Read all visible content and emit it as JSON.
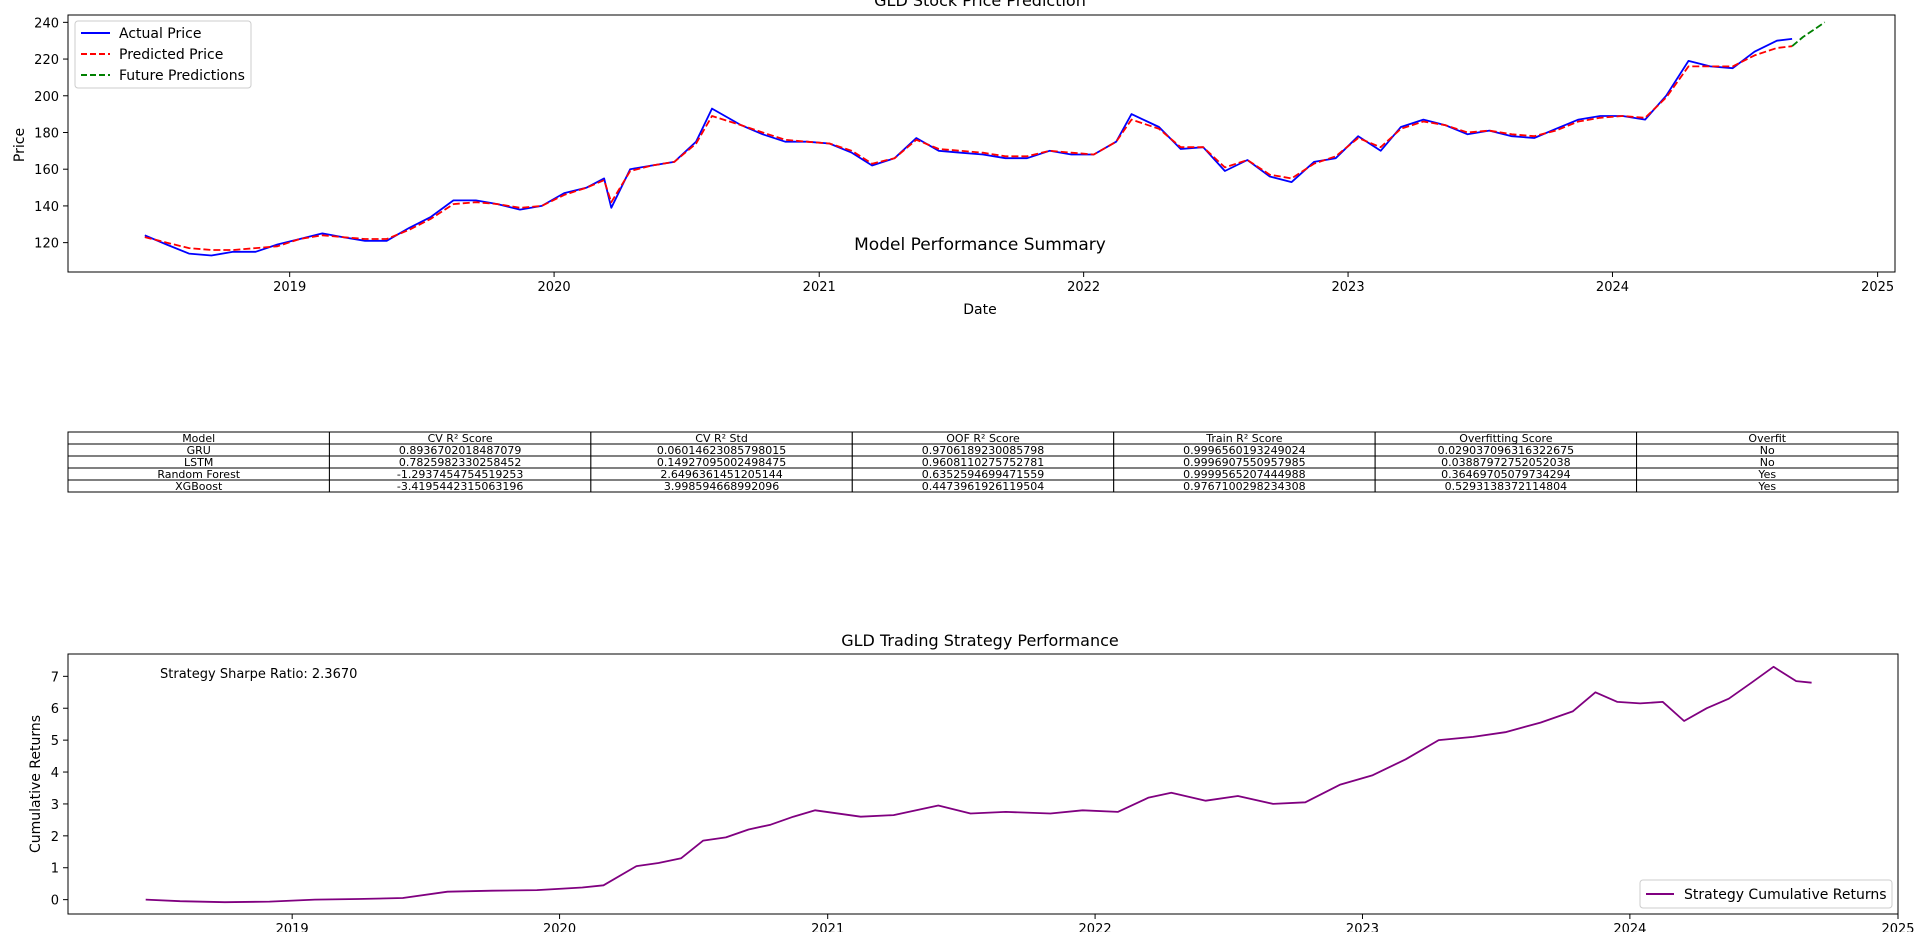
{
  "colors": {
    "actual": "#0000ff",
    "predicted": "#ff0000",
    "future": "#008000",
    "strategy": "#800080",
    "axes": "#000000"
  },
  "chart_data": [
    {
      "type": "line",
      "title": "GLD Stock Price Prediction",
      "xlabel": "Date",
      "ylabel": "Price",
      "xlim": [
        "2018-03-01",
        "2025-01-25"
      ],
      "ylim": [
        104,
        244
      ],
      "x_ticks": [
        "2019",
        "2020",
        "2021",
        "2022",
        "2023",
        "2024",
        "2025"
      ],
      "y_ticks": [
        120,
        140,
        160,
        180,
        200,
        220,
        240
      ],
      "grid": false,
      "legend_position": "upper-left",
      "annotation": "Model Performance Summary",
      "series": [
        {
          "name": "Actual Price",
          "style": "solid",
          "color_key": "actual",
          "points": [
            [
              "2018-06-15",
              124
            ],
            [
              "2018-07-15",
              119
            ],
            [
              "2018-08-15",
              114
            ],
            [
              "2018-09-15",
              113
            ],
            [
              "2018-10-15",
              115
            ],
            [
              "2018-11-15",
              115
            ],
            [
              "2018-12-15",
              119
            ],
            [
              "2019-01-15",
              122
            ],
            [
              "2019-02-15",
              125
            ],
            [
              "2019-03-15",
              123
            ],
            [
              "2019-04-15",
              121
            ],
            [
              "2019-05-15",
              121
            ],
            [
              "2019-06-15",
              128
            ],
            [
              "2019-07-15",
              134
            ],
            [
              "2019-08-15",
              143
            ],
            [
              "2019-09-15",
              143
            ],
            [
              "2019-10-15",
              141
            ],
            [
              "2019-11-15",
              138
            ],
            [
              "2019-12-15",
              140
            ],
            [
              "2020-01-15",
              147
            ],
            [
              "2020-02-15",
              150
            ],
            [
              "2020-03-10",
              155
            ],
            [
              "2020-03-20",
              139
            ],
            [
              "2020-04-15",
              160
            ],
            [
              "2020-05-15",
              162
            ],
            [
              "2020-06-15",
              164
            ],
            [
              "2020-07-15",
              175
            ],
            [
              "2020-08-06",
              193
            ],
            [
              "2020-09-15",
              184
            ],
            [
              "2020-10-15",
              179
            ],
            [
              "2020-11-15",
              175
            ],
            [
              "2020-12-15",
              175
            ],
            [
              "2021-01-15",
              174
            ],
            [
              "2021-02-15",
              169
            ],
            [
              "2021-03-15",
              162
            ],
            [
              "2021-04-15",
              166
            ],
            [
              "2021-05-15",
              177
            ],
            [
              "2021-06-15",
              170
            ],
            [
              "2021-07-15",
              169
            ],
            [
              "2021-08-15",
              168
            ],
            [
              "2021-09-15",
              166
            ],
            [
              "2021-10-15",
              166
            ],
            [
              "2021-11-15",
              170
            ],
            [
              "2021-12-15",
              168
            ],
            [
              "2022-01-15",
              168
            ],
            [
              "2022-02-15",
              175
            ],
            [
              "2022-03-08",
              190
            ],
            [
              "2022-04-15",
              183
            ],
            [
              "2022-05-15",
              171
            ],
            [
              "2022-06-15",
              172
            ],
            [
              "2022-07-15",
              159
            ],
            [
              "2022-08-15",
              165
            ],
            [
              "2022-09-15",
              156
            ],
            [
              "2022-10-15",
              153
            ],
            [
              "2022-11-15",
              164
            ],
            [
              "2022-12-15",
              166
            ],
            [
              "2023-01-15",
              178
            ],
            [
              "2023-02-15",
              170
            ],
            [
              "2023-03-15",
              183
            ],
            [
              "2023-04-15",
              187
            ],
            [
              "2023-05-15",
              184
            ],
            [
              "2023-06-15",
              179
            ],
            [
              "2023-07-15",
              181
            ],
            [
              "2023-08-15",
              178
            ],
            [
              "2023-09-15",
              177
            ],
            [
              "2023-10-15",
              182
            ],
            [
              "2023-11-15",
              187
            ],
            [
              "2023-12-15",
              189
            ],
            [
              "2024-01-15",
              189
            ],
            [
              "2024-02-15",
              187
            ],
            [
              "2024-03-15",
              200
            ],
            [
              "2024-04-15",
              219
            ],
            [
              "2024-05-15",
              216
            ],
            [
              "2024-06-15",
              215
            ],
            [
              "2024-07-15",
              224
            ],
            [
              "2024-08-15",
              230
            ],
            [
              "2024-09-05",
              231
            ]
          ]
        },
        {
          "name": "Predicted Price",
          "style": "dashed",
          "color_key": "predicted",
          "points": [
            [
              "2018-06-15",
              123
            ],
            [
              "2018-07-15",
              120
            ],
            [
              "2018-08-15",
              117
            ],
            [
              "2018-09-15",
              116
            ],
            [
              "2018-10-15",
              116
            ],
            [
              "2018-11-15",
              117
            ],
            [
              "2018-12-15",
              118
            ],
            [
              "2019-01-15",
              122
            ],
            [
              "2019-02-15",
              124
            ],
            [
              "2019-03-15",
              123
            ],
            [
              "2019-04-15",
              122
            ],
            [
              "2019-05-15",
              122
            ],
            [
              "2019-06-15",
              127
            ],
            [
              "2019-07-15",
              133
            ],
            [
              "2019-08-15",
              141
            ],
            [
              "2019-09-15",
              142
            ],
            [
              "2019-10-15",
              141
            ],
            [
              "2019-11-15",
              139
            ],
            [
              "2019-12-15",
              140
            ],
            [
              "2020-01-15",
              146
            ],
            [
              "2020-02-15",
              150
            ],
            [
              "2020-03-10",
              154
            ],
            [
              "2020-03-20",
              142
            ],
            [
              "2020-04-15",
              159
            ],
            [
              "2020-05-15",
              162
            ],
            [
              "2020-06-15",
              164
            ],
            [
              "2020-07-15",
              174
            ],
            [
              "2020-08-06",
              189
            ],
            [
              "2020-09-15",
              184
            ],
            [
              "2020-10-15",
              180
            ],
            [
              "2020-11-15",
              176
            ],
            [
              "2020-12-15",
              175
            ],
            [
              "2021-01-15",
              174
            ],
            [
              "2021-02-15",
              170
            ],
            [
              "2021-03-15",
              163
            ],
            [
              "2021-04-15",
              166
            ],
            [
              "2021-05-15",
              176
            ],
            [
              "2021-06-15",
              171
            ],
            [
              "2021-07-15",
              170
            ],
            [
              "2021-08-15",
              169
            ],
            [
              "2021-09-15",
              167
            ],
            [
              "2021-10-15",
              167
            ],
            [
              "2021-11-15",
              170
            ],
            [
              "2021-12-15",
              169
            ],
            [
              "2022-01-15",
              168
            ],
            [
              "2022-02-15",
              175
            ],
            [
              "2022-03-08",
              187
            ],
            [
              "2022-04-15",
              182
            ],
            [
              "2022-05-15",
              172
            ],
            [
              "2022-06-15",
              172
            ],
            [
              "2022-07-15",
              161
            ],
            [
              "2022-08-15",
              165
            ],
            [
              "2022-09-15",
              157
            ],
            [
              "2022-10-15",
              155
            ],
            [
              "2022-11-15",
              163
            ],
            [
              "2022-12-15",
              167
            ],
            [
              "2023-01-15",
              177
            ],
            [
              "2023-02-15",
              172
            ],
            [
              "2023-03-15",
              182
            ],
            [
              "2023-04-15",
              186
            ],
            [
              "2023-05-15",
              184
            ],
            [
              "2023-06-15",
              180
            ],
            [
              "2023-07-15",
              181
            ],
            [
              "2023-08-15",
              179
            ],
            [
              "2023-09-15",
              178
            ],
            [
              "2023-10-15",
              181
            ],
            [
              "2023-11-15",
              186
            ],
            [
              "2023-12-15",
              188
            ],
            [
              "2024-01-15",
              189
            ],
            [
              "2024-02-15",
              188
            ],
            [
              "2024-03-15",
              199
            ],
            [
              "2024-04-15",
              216
            ],
            [
              "2024-05-15",
              216
            ],
            [
              "2024-06-15",
              216
            ],
            [
              "2024-07-15",
              222
            ],
            [
              "2024-08-15",
              226
            ],
            [
              "2024-09-05",
              227
            ]
          ]
        },
        {
          "name": "Future Predictions",
          "style": "dashed",
          "color_key": "future",
          "points": [
            [
              "2024-09-05",
              227
            ],
            [
              "2024-09-20",
              232
            ],
            [
              "2024-10-05",
              236
            ],
            [
              "2024-10-20",
              240
            ]
          ]
        }
      ]
    },
    {
      "type": "table",
      "columns": [
        "Model",
        "CV R² Score",
        "CV R² Std",
        "OOF R² Score",
        "Train R² Score",
        "Overfitting Score",
        "Overfit"
      ],
      "rows": [
        [
          "GRU",
          "0.8936702018487079",
          "0.06014623085798015",
          "0.9706189230085798",
          "0.9996560193249024",
          "0.029037096316322675",
          "No"
        ],
        [
          "LSTM",
          "0.7825982330258452",
          "0.14927095002498475",
          "0.9608110275752781",
          "0.9996907550957985",
          "0.03887972752052038",
          "No"
        ],
        [
          "Random Forest",
          "-1.2937454754519253",
          "2.6496361451205144",
          "0.6352594699471559",
          "0.9999565207444988",
          "0.36469705079734294",
          "Yes"
        ],
        [
          "XGBoost",
          "-3.4195442315063196",
          "3.998594668992096",
          "0.4473961926119504",
          "0.9767100298234308",
          "0.5293138372114804",
          "Yes"
        ]
      ]
    },
    {
      "type": "line",
      "title": "GLD Trading Strategy Performance",
      "xlabel": "",
      "ylabel": "Cumulative Returns",
      "xlim": [
        "2018-03-01",
        "2025-01-01"
      ],
      "ylim": [
        -0.45,
        7.7
      ],
      "x_ticks": [
        "2019",
        "2020",
        "2021",
        "2022",
        "2023",
        "2024",
        "2025"
      ],
      "y_ticks": [
        0,
        1,
        2,
        3,
        4,
        5,
        6,
        7
      ],
      "grid": false,
      "legend_position": "lower-right",
      "annotation": "Strategy Sharpe Ratio: 2.3670",
      "series": [
        {
          "name": "Strategy Cumulative Returns",
          "style": "solid",
          "color_key": "strategy",
          "points": [
            [
              "2018-06-15",
              0.0
            ],
            [
              "2018-08-01",
              -0.05
            ],
            [
              "2018-10-01",
              -0.08
            ],
            [
              "2018-12-01",
              -0.06
            ],
            [
              "2019-02-01",
              0.0
            ],
            [
              "2019-04-01",
              0.02
            ],
            [
              "2019-06-01",
              0.05
            ],
            [
              "2019-08-01",
              0.25
            ],
            [
              "2019-10-01",
              0.28
            ],
            [
              "2019-12-01",
              0.3
            ],
            [
              "2020-02-01",
              0.38
            ],
            [
              "2020-03-01",
              0.45
            ],
            [
              "2020-04-15",
              1.05
            ],
            [
              "2020-05-15",
              1.15
            ],
            [
              "2020-06-15",
              1.3
            ],
            [
              "2020-07-15",
              1.85
            ],
            [
              "2020-08-15",
              1.95
            ],
            [
              "2020-09-15",
              2.2
            ],
            [
              "2020-10-15",
              2.35
            ],
            [
              "2020-11-15",
              2.6
            ],
            [
              "2020-12-15",
              2.8
            ],
            [
              "2021-02-15",
              2.6
            ],
            [
              "2021-04-01",
              2.65
            ],
            [
              "2021-06-01",
              2.95
            ],
            [
              "2021-07-15",
              2.7
            ],
            [
              "2021-09-01",
              2.75
            ],
            [
              "2021-11-01",
              2.7
            ],
            [
              "2021-12-15",
              2.8
            ],
            [
              "2022-02-01",
              2.75
            ],
            [
              "2022-03-15",
              3.2
            ],
            [
              "2022-04-15",
              3.35
            ],
            [
              "2022-06-01",
              3.1
            ],
            [
              "2022-07-15",
              3.25
            ],
            [
              "2022-09-01",
              3.0
            ],
            [
              "2022-10-15",
              3.05
            ],
            [
              "2022-12-01",
              3.6
            ],
            [
              "2023-01-15",
              3.9
            ],
            [
              "2023-03-01",
              4.4
            ],
            [
              "2023-04-15",
              5.0
            ],
            [
              "2023-06-01",
              5.1
            ],
            [
              "2023-07-15",
              5.25
            ],
            [
              "2023-09-01",
              5.55
            ],
            [
              "2023-10-15",
              5.9
            ],
            [
              "2023-11-15",
              6.5
            ],
            [
              "2023-12-15",
              6.2
            ],
            [
              "2024-01-15",
              6.15
            ],
            [
              "2024-02-15",
              6.2
            ],
            [
              "2024-03-15",
              5.6
            ],
            [
              "2024-04-15",
              6.0
            ],
            [
              "2024-05-15",
              6.3
            ],
            [
              "2024-06-15",
              6.8
            ],
            [
              "2024-07-15",
              7.3
            ],
            [
              "2024-08-15",
              6.85
            ],
            [
              "2024-09-05",
              6.8
            ]
          ]
        }
      ]
    }
  ]
}
